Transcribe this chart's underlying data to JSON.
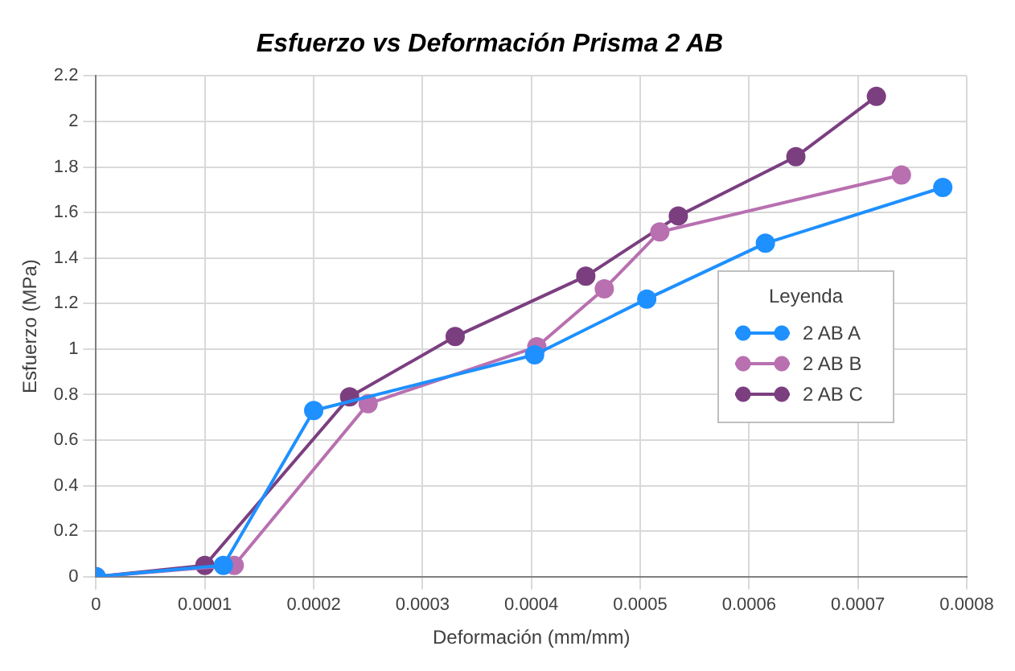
{
  "chart_data": {
    "type": "line",
    "title": "Esfuerzo vs Deformación Prisma 2 AB",
    "xlabel": "Deformación (mm/mm)",
    "ylabel": "Esfuerzo (MPa)",
    "legend_title": "Leyenda",
    "legend": "bottom right",
    "grid": true,
    "marker": "circle",
    "line_style": "solid",
    "xlim": [
      0,
      0.0008
    ],
    "xticks": [
      0,
      0.0001,
      0.0002,
      0.0003,
      0.0004,
      0.0005,
      0.0006,
      0.0007,
      0.0008
    ],
    "ylim": [
      0,
      2.2
    ],
    "yticks": [
      0,
      0.2,
      0.4,
      0.6,
      0.8,
      1,
      1.2,
      1.4,
      1.6,
      1.8,
      2,
      2.2
    ],
    "series": [
      {
        "name": "2 AB A",
        "color": "#1e90ff",
        "x": [
          0,
          0.000117,
          0.0002,
          0.000403,
          0.000506,
          0.000615,
          0.000778
        ],
        "values": [
          0,
          0.05,
          0.73,
          0.975,
          1.22,
          1.465,
          1.71
        ]
      },
      {
        "name": "2 AB B",
        "color": "#b870b0",
        "x": [
          0,
          0.000127,
          0.00025,
          0.000405,
          0.000467,
          0.000518,
          0.00074
        ],
        "values": [
          0,
          0.05,
          0.76,
          1.01,
          1.265,
          1.515,
          1.765
        ]
      },
      {
        "name": "2 AB C",
        "color": "#7b3f80",
        "x": [
          0,
          0.0001,
          0.000233,
          0.00033,
          0.00045,
          0.000535,
          0.000643,
          0.000717
        ],
        "values": [
          0,
          0.05,
          0.79,
          1.055,
          1.32,
          1.585,
          1.845,
          2.11
        ]
      }
    ]
  }
}
